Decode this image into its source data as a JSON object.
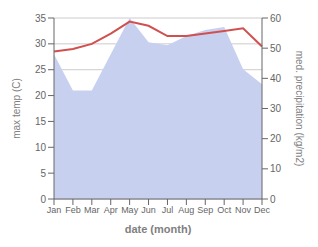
{
  "chart_data": {
    "type": "line",
    "xlabel": "date (month)",
    "ylabel": "max temp (C)",
    "y2label": "med. precipitation (kg/m2)",
    "categories": [
      "Jan",
      "Feb",
      "Mar",
      "Apr",
      "May",
      "Jun",
      "Jul",
      "Aug",
      "Sep",
      "Oct",
      "Nov",
      "Dec"
    ],
    "series": [
      {
        "type": "area",
        "axis": "y2",
        "color": "#c8d0f0",
        "values": [
          48,
          36,
          36,
          48,
          60,
          52,
          51,
          54,
          56,
          57,
          43,
          38
        ]
      },
      {
        "type": "line",
        "axis": "y",
        "color": "#d05050",
        "values": [
          28.5,
          29.0,
          30.0,
          32.0,
          34.3,
          33.5,
          31.5,
          31.5,
          32.0,
          32.5,
          33.0,
          29.5
        ]
      }
    ],
    "ylim": [
      0,
      35
    ],
    "yticks": [
      0,
      5,
      10,
      15,
      20,
      25,
      30,
      35
    ],
    "y2lim": [
      0,
      60
    ],
    "y2ticks": [
      0,
      10,
      20,
      30,
      40,
      50,
      60
    ],
    "grid": true
  }
}
